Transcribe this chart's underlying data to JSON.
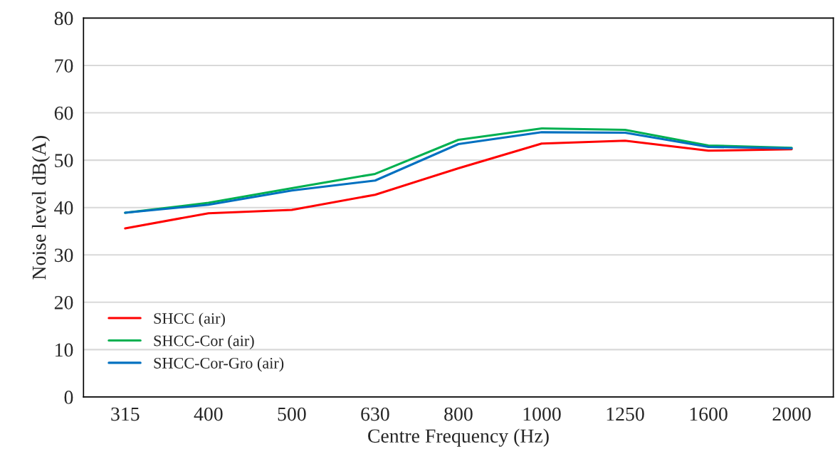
{
  "chart_data": {
    "type": "line",
    "xlabel": "Centre Frequency (Hz)",
    "ylabel": "Noise level dB(A)",
    "categories": [
      "315",
      "400",
      "500",
      "630",
      "800",
      "1000",
      "1250",
      "1600",
      "2000"
    ],
    "series": [
      {
        "name": "SHCC (air)",
        "color": "#ff0000",
        "values": [
          35.6,
          38.8,
          39.5,
          42.7,
          48.3,
          53.5,
          54.1,
          52.0,
          52.3
        ]
      },
      {
        "name": "SHCC-Cor (air)",
        "color": "#00b050",
        "values": [
          38.9,
          41.0,
          44.1,
          47.1,
          54.3,
          56.7,
          56.4,
          53.1,
          52.6
        ]
      },
      {
        "name": "SHCC-Cor-Gro (air)",
        "color": "#0070c0",
        "values": [
          38.9,
          40.6,
          43.6,
          45.7,
          53.4,
          55.9,
          55.8,
          52.8,
          52.5
        ]
      }
    ],
    "ylim": [
      0,
      80
    ],
    "yticks": [
      0,
      10,
      20,
      30,
      40,
      50,
      60,
      70,
      80
    ],
    "grid": "y",
    "legend": "bottom left",
    "marker": "none",
    "line_style": "solid"
  }
}
